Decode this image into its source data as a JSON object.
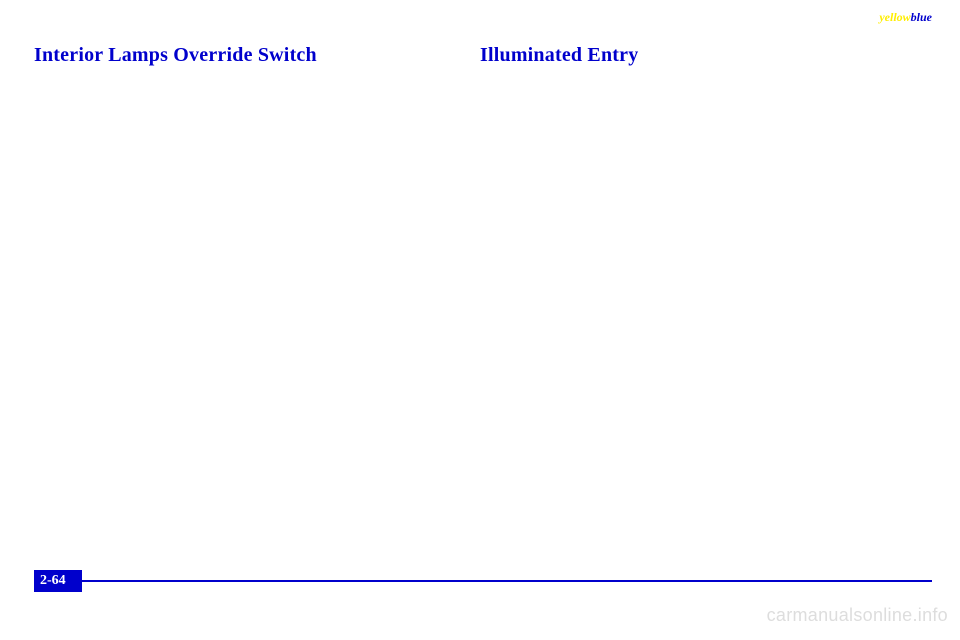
{
  "corner": {
    "yellow": "yellow",
    "blue": "blue"
  },
  "left": {
    "heading": "Interior Lamps Override Switch"
  },
  "right": {
    "heading": "Illuminated Entry"
  },
  "footer": {
    "page": "2-64"
  },
  "watermark": "carmanualsonline.info",
  "colors": {
    "blue": "#0000cc",
    "yellow": "#ffee00",
    "watermark": "#dddddd",
    "background": "#ffffff"
  }
}
